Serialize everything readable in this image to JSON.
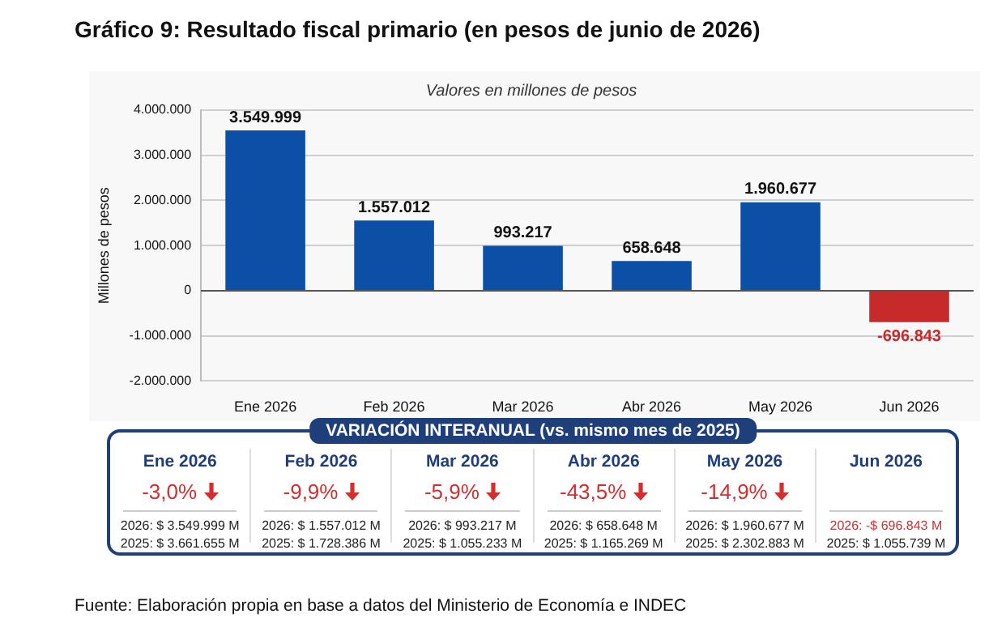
{
  "chart_data": {
    "type": "bar",
    "title": "Gráfico 9: Resultado fiscal primario (en pesos de junio de 2026)",
    "subtitle": "Valores en millones de pesos",
    "ylabel": "Millones de pesos",
    "categories": [
      "Ene 2026",
      "Feb 2026",
      "Mar 2026",
      "Abr 2026",
      "May 2026",
      "Jun 2026"
    ],
    "values": [
      3549999,
      1557012,
      993217,
      658648,
      1960677,
      -696843
    ],
    "colors": [
      "#0b4fa6",
      "#0b4fa6",
      "#0b4fa6",
      "#0b4fa6",
      "#0b4fa6",
      "#c62a2a"
    ],
    "ylim": [
      -2000000,
      4000000
    ],
    "yticks": [
      {
        "value": -2000000,
        "label": "-2.000.000"
      },
      {
        "value": -1000000,
        "label": "-1.000.000"
      },
      {
        "value": 0,
        "label": "0"
      },
      {
        "value": 1000000,
        "label": "1.000.000"
      },
      {
        "value": 2000000,
        "label": "2.000.000"
      },
      {
        "value": 3000000,
        "label": "3.000.000"
      },
      {
        "value": 4000000,
        "label": "4.000.000"
      }
    ],
    "grid": "y",
    "value_labels": [
      "3.549.999",
      "1.557.012",
      "993.217",
      "658.648",
      "1.960.677",
      "-696.843"
    ],
    "annotations": [
      "VARIACIÓN INTERANUAL (vs. mismo mes de 2025)",
      "2026: $ 3.549.999 M",
      "2026: $ 1.557.012 M",
      "2026: $ 993.217 M",
      "2026: $ 658.648 M",
      "2026: $ 1.960.677 M",
      "2026: -$ 696.843 M",
      "2025: $ 3.661.655 M",
      "2025: $ 1.728.386 M",
      "2025: $ 1.055.233 M",
      "2025: $ 1.165.269 M",
      "2025: $ 2.302.883 M",
      "2025: $ 1.055.739 M",
      "-3,0%",
      "-9,9%",
      "-5,9%",
      "-43,5%",
      "-14,9%",
      "Fuente: Elaboración propia en base a datos del Ministerio de Economía e INDEC"
    ]
  }
}
